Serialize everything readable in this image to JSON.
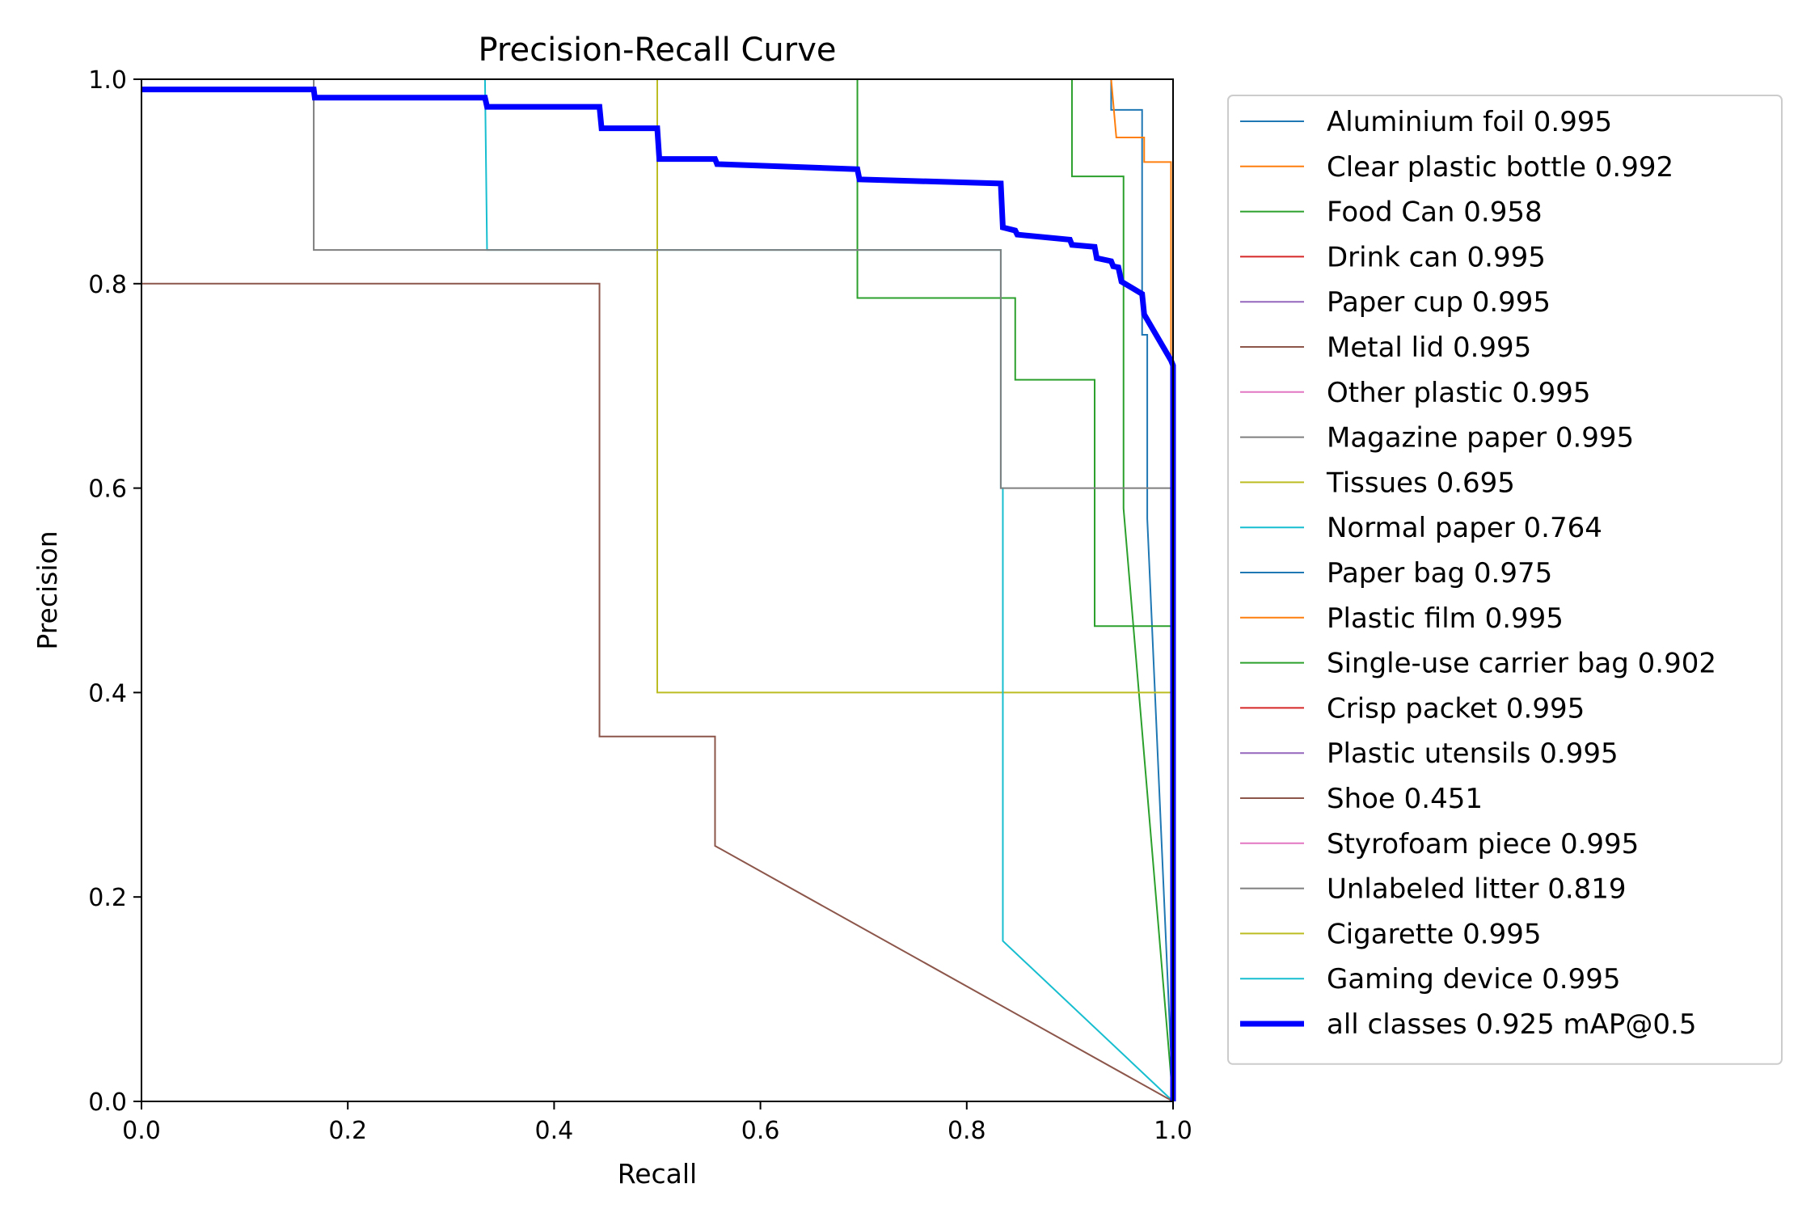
{
  "chart_data": {
    "type": "line",
    "title": "Precision-Recall Curve",
    "xlabel": "Recall",
    "ylabel": "Precision",
    "xlim": [
      0,
      1
    ],
    "ylim": [
      0,
      1
    ],
    "xticks": [
      "0.0",
      "0.2",
      "0.4",
      "0.6",
      "0.8",
      "1.0"
    ],
    "yticks": [
      "0.0",
      "0.2",
      "0.4",
      "0.6",
      "0.8",
      "1.0"
    ],
    "grid": false,
    "legend_placement": "outside-right",
    "series": [
      {
        "name": "Aluminium foil 0.995",
        "color": "#1f77b4",
        "width": 2,
        "x": [
          0.937,
          0.94,
          0.94,
          0.97,
          0.97,
          0.975,
          0.975,
          1.0,
          1.0
        ],
        "y": [
          1.0,
          1.0,
          0.97,
          0.97,
          0.75,
          0.75,
          0.57,
          0.0,
          0.0
        ]
      },
      {
        "name": "Clear plastic bottle 0.992",
        "color": "#ff7f0e",
        "width": 2,
        "x": [
          0.94,
          0.94,
          0.945,
          0.945,
          0.972,
          0.972,
          0.998,
          0.998,
          1.0
        ],
        "y": [
          1.0,
          1.0,
          0.943,
          0.943,
          0.943,
          0.919,
          0.919,
          0.0,
          0.0
        ]
      },
      {
        "name": "Food Can 0.958",
        "color": "#2ca02c",
        "width": 2,
        "x": [
          0.902,
          0.902,
          0.952,
          0.952,
          1.0
        ],
        "y": [
          1.0,
          0.905,
          0.905,
          0.58,
          0.0
        ]
      },
      {
        "name": "Drink can 0.995",
        "color": "#d62728",
        "width": 2,
        "x": [
          0.0,
          1.0,
          1.0
        ],
        "y": [
          1.0,
          1.0,
          0.0
        ]
      },
      {
        "name": "Paper cup 0.995",
        "color": "#9467bd",
        "width": 2,
        "x": [
          0.0,
          1.0,
          1.0
        ],
        "y": [
          1.0,
          1.0,
          0.0
        ]
      },
      {
        "name": "Metal lid 0.995",
        "color": "#8c564b",
        "width": 2,
        "x": [
          0.0,
          1.0,
          1.0
        ],
        "y": [
          1.0,
          1.0,
          0.0
        ]
      },
      {
        "name": "Other plastic 0.995",
        "color": "#e377c2",
        "width": 2,
        "x": [
          0.0,
          1.0,
          1.0
        ],
        "y": [
          1.0,
          1.0,
          0.0
        ]
      },
      {
        "name": "Magazine paper 0.995",
        "color": "#7f7f7f",
        "width": 2,
        "x": [
          0.0,
          1.0,
          1.0
        ],
        "y": [
          1.0,
          1.0,
          0.0
        ]
      },
      {
        "name": "Tissues 0.695",
        "color": "#bcbd22",
        "width": 2,
        "x": [
          0.5,
          0.5,
          1.0,
          1.0
        ],
        "y": [
          1.0,
          0.4,
          0.4,
          0.0
        ]
      },
      {
        "name": "Normal paper 0.764",
        "color": "#17becf",
        "width": 2,
        "x": [
          0.333,
          0.335,
          0.833,
          0.833,
          0.835,
          0.835,
          1.0,
          1.0
        ],
        "y": [
          1.0,
          0.833,
          0.833,
          0.6,
          0.6,
          0.157,
          0.0,
          0.0
        ]
      },
      {
        "name": "Paper bag 0.975",
        "color": "#1f77b4",
        "width": 2,
        "x": [
          0.0,
          1.0,
          1.0
        ],
        "y": [
          1.0,
          1.0,
          0.0
        ]
      },
      {
        "name": "Plastic film 0.995",
        "color": "#ff7f0e",
        "width": 2,
        "x": [
          0.0,
          1.0,
          1.0
        ],
        "y": [
          1.0,
          1.0,
          0.0
        ]
      },
      {
        "name": "Single-use carrier bag 0.902",
        "color": "#2ca02c",
        "width": 2,
        "x": [
          0.694,
          0.694,
          0.847,
          0.847,
          0.924,
          0.924,
          1.0,
          1.0
        ],
        "y": [
          1.0,
          0.786,
          0.786,
          0.706,
          0.706,
          0.465,
          0.465,
          0.0
        ]
      },
      {
        "name": "Crisp packet 0.995",
        "color": "#d62728",
        "width": 2,
        "x": [
          0.0,
          1.0,
          1.0
        ],
        "y": [
          1.0,
          1.0,
          0.0
        ]
      },
      {
        "name": "Plastic utensils 0.995",
        "color": "#9467bd",
        "width": 2,
        "x": [
          0.0,
          1.0,
          1.0
        ],
        "y": [
          1.0,
          1.0,
          0.0
        ]
      },
      {
        "name": "Shoe 0.451",
        "color": "#8c564b",
        "width": 2,
        "x": [
          0.0,
          0.444,
          0.444,
          0.556,
          0.556,
          1.0
        ],
        "y": [
          0.8,
          0.8,
          0.357,
          0.357,
          0.25,
          0.0
        ]
      },
      {
        "name": "Styrofoam piece 0.995",
        "color": "#e377c2",
        "width": 2,
        "x": [
          0.0,
          1.0,
          1.0
        ],
        "y": [
          1.0,
          1.0,
          0.0
        ]
      },
      {
        "name": "Unlabeled litter 0.819",
        "color": "#7f7f7f",
        "width": 2,
        "x": [
          0.167,
          0.167,
          0.833,
          0.833,
          1.0,
          1.0
        ],
        "y": [
          1.0,
          0.833,
          0.833,
          0.6,
          0.6,
          0.0
        ]
      },
      {
        "name": "Cigarette 0.995",
        "color": "#bcbd22",
        "width": 2,
        "x": [
          0.0,
          1.0,
          1.0
        ],
        "y": [
          1.0,
          1.0,
          0.0
        ]
      },
      {
        "name": "Gaming device 0.995",
        "color": "#17becf",
        "width": 2,
        "x": [
          0.0,
          1.0,
          1.0
        ],
        "y": [
          1.0,
          1.0,
          0.0
        ]
      },
      {
        "name": "all classes 0.925 mAP@0.5",
        "color": "#0000ff",
        "width": 7,
        "x": [
          0.0,
          0.167,
          0.168,
          0.333,
          0.335,
          0.444,
          0.446,
          0.5,
          0.502,
          0.556,
          0.558,
          0.694,
          0.696,
          0.833,
          0.835,
          0.847,
          0.849,
          0.9,
          0.902,
          0.924,
          0.926,
          0.94,
          0.942,
          0.947,
          0.95,
          0.97,
          0.972,
          0.998,
          1.0,
          1.0
        ],
        "y": [
          0.99,
          0.99,
          0.982,
          0.982,
          0.973,
          0.973,
          0.952,
          0.952,
          0.922,
          0.922,
          0.917,
          0.912,
          0.902,
          0.898,
          0.855,
          0.852,
          0.848,
          0.843,
          0.838,
          0.836,
          0.825,
          0.822,
          0.817,
          0.816,
          0.802,
          0.79,
          0.77,
          0.725,
          0.72,
          0.0
        ]
      }
    ]
  }
}
